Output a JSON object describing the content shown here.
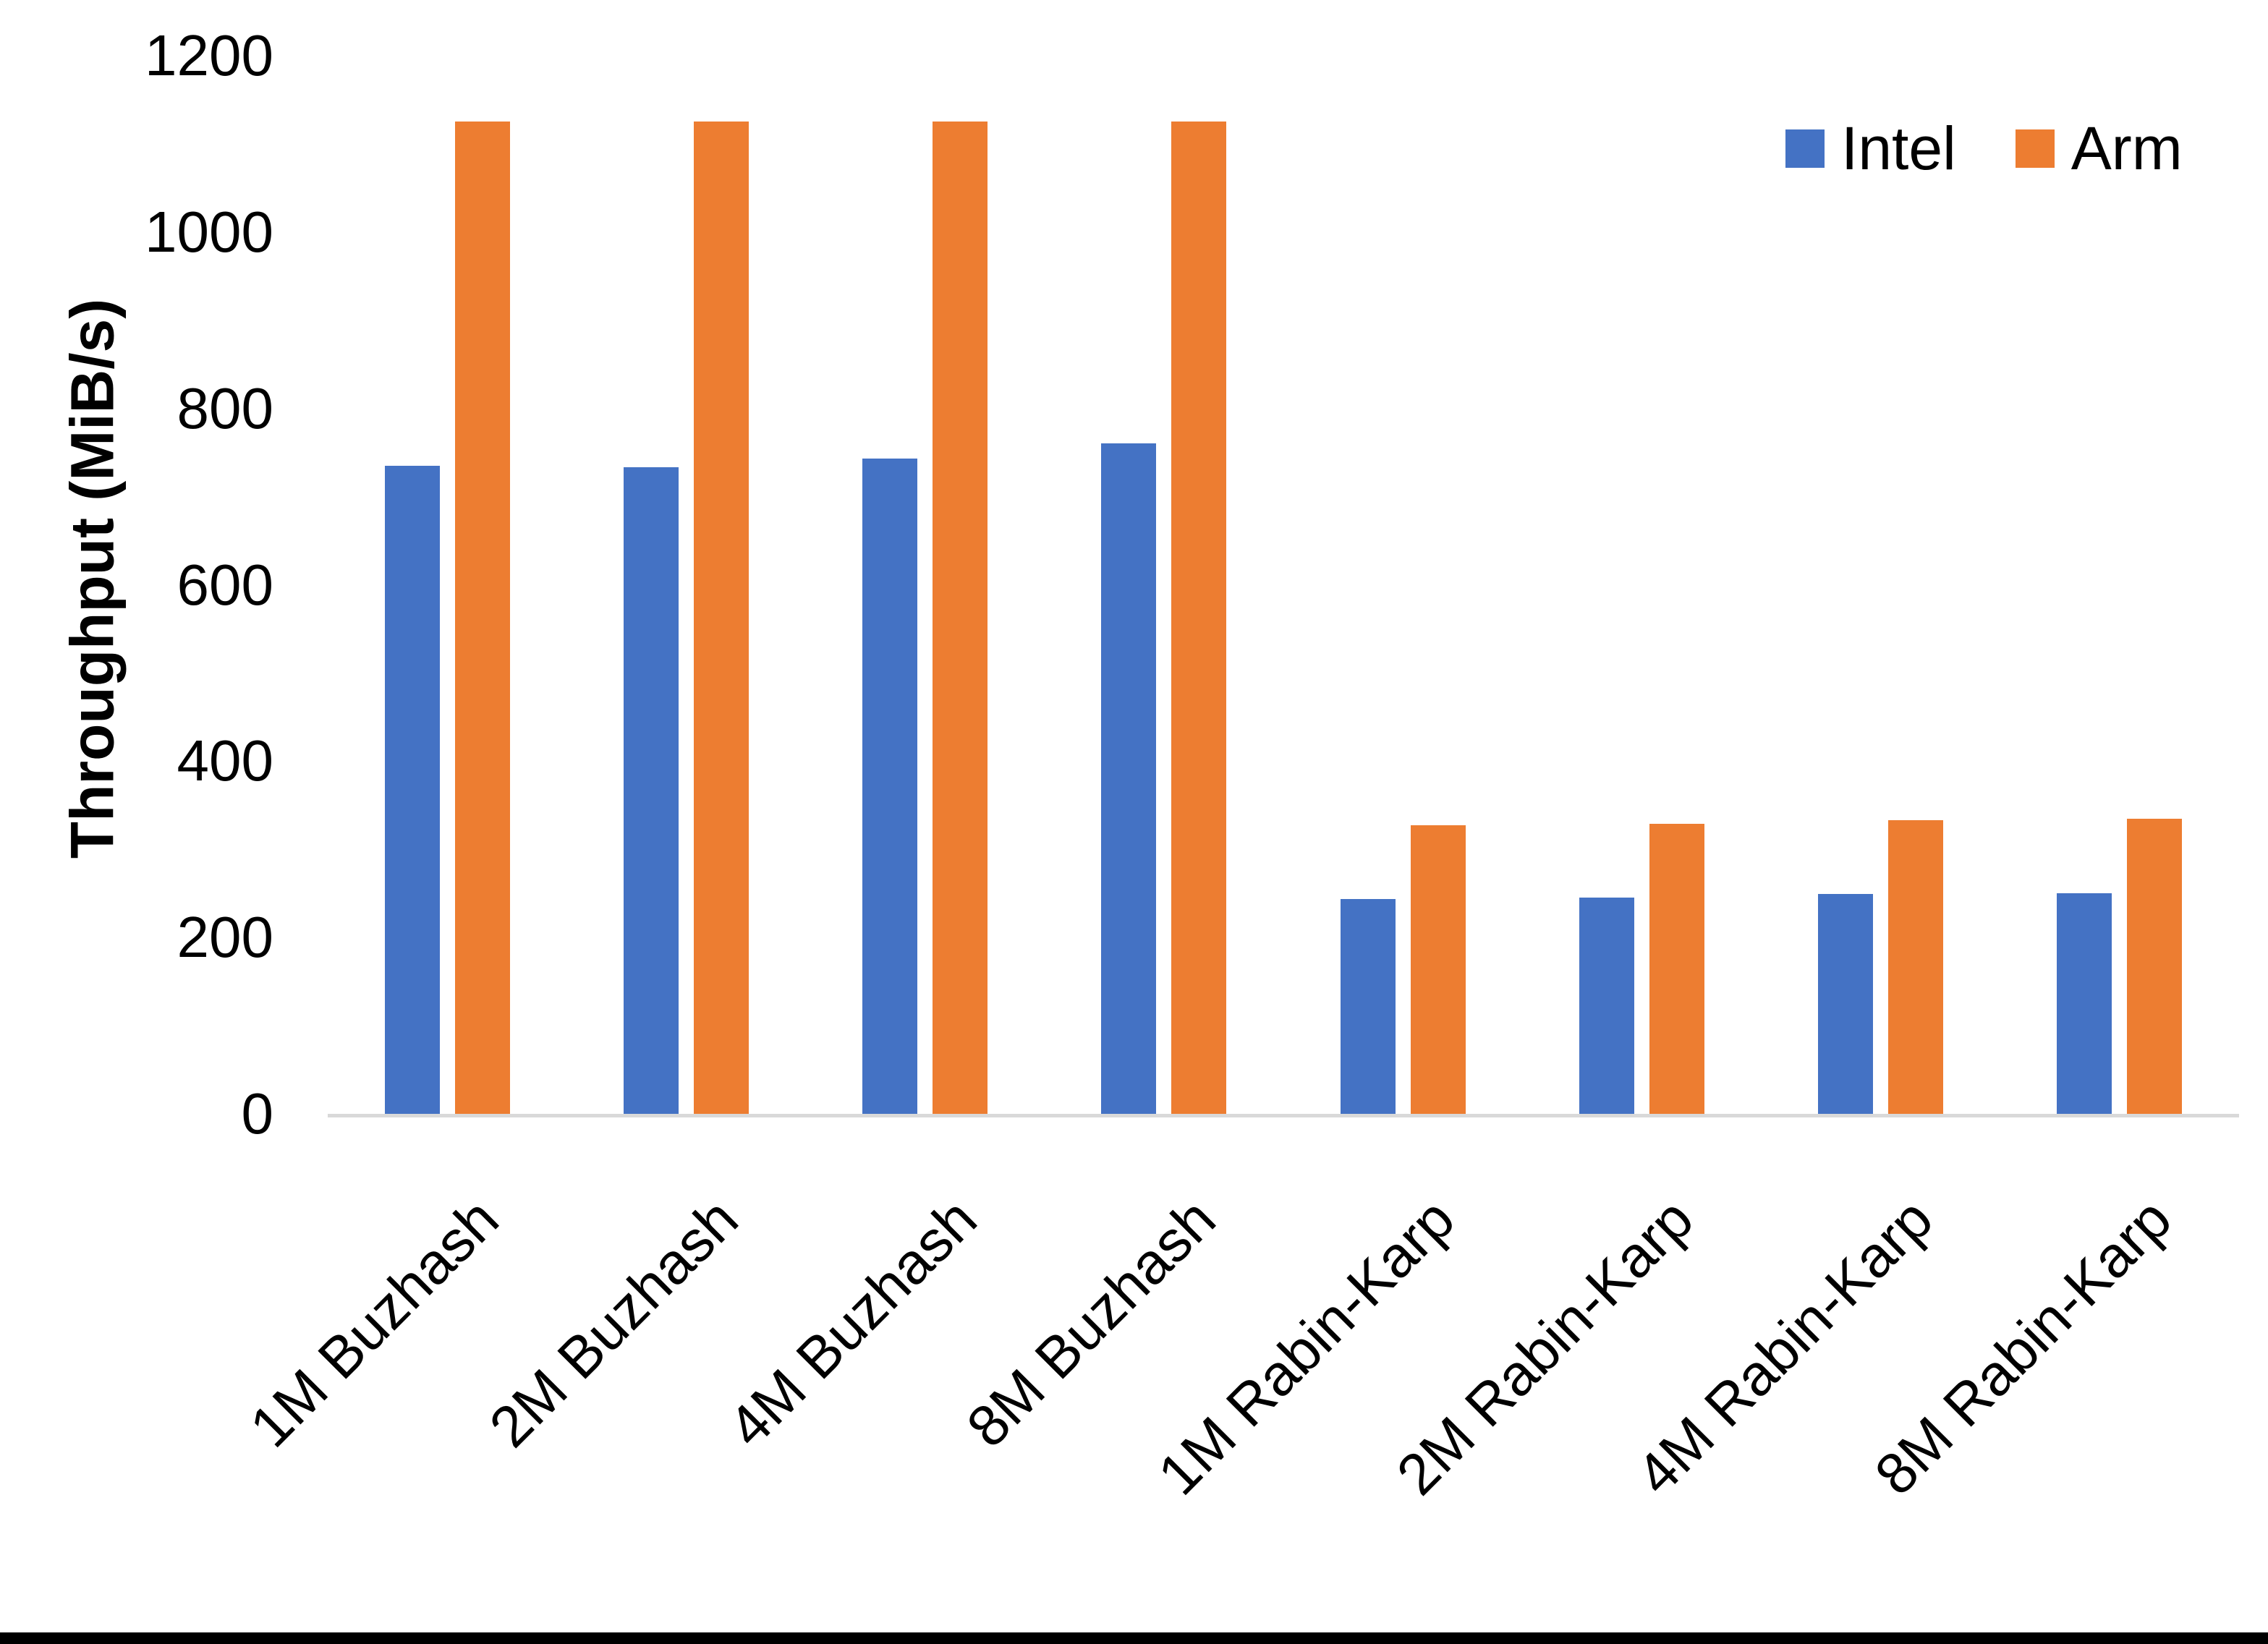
{
  "chart_data": {
    "type": "bar",
    "title": "",
    "xlabel": "",
    "ylabel": "Throughput (MiB/s)",
    "ylim": [
      0,
      1200
    ],
    "ytick_step": 200,
    "yticks": [
      0,
      200,
      400,
      600,
      800,
      1000,
      1200
    ],
    "grid": false,
    "legend_position": "top-right",
    "background_color": "#FFFFFF",
    "axis_line_color": "#D9D9D9",
    "text_color": "#000000",
    "categories": [
      "1M Buzhash",
      "2M Buzhash",
      "4M Buzhash",
      "8M Buzhash",
      "1M Rabin-Karp",
      "2M Rabin-Karp",
      "4M Rabin-Karp",
      "8M Rabin-Karp"
    ],
    "series": [
      {
        "name": "Intel",
        "color": "#4472C4",
        "values": [
          735,
          733,
          743,
          760,
          244,
          245,
          249,
          250
        ]
      },
      {
        "name": "Arm",
        "color": "#ED7D31",
        "values": [
          1125,
          1125,
          1125,
          1125,
          327,
          329,
          333,
          335
        ]
      }
    ]
  }
}
